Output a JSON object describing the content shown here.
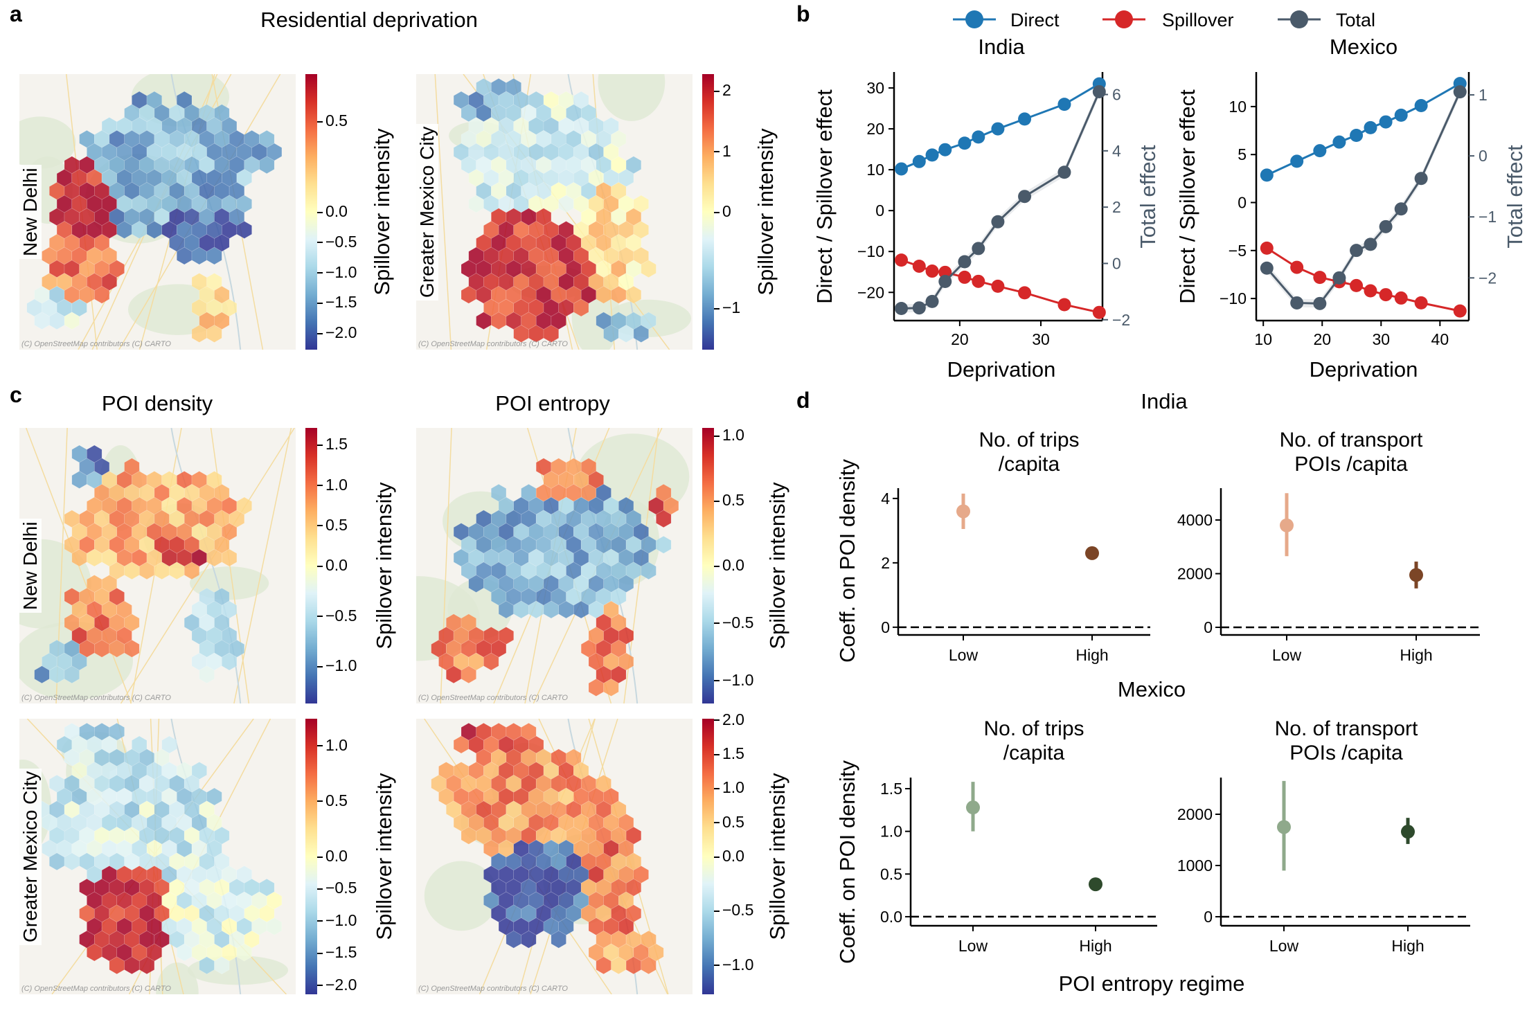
{
  "panel_labels": {
    "a": "a",
    "b": "b",
    "c": "c",
    "d": "d"
  },
  "panel_a": {
    "title": "Residential deprivation",
    "maps": [
      {
        "city": "New Delhi",
        "attribution": "(C) OpenStreetMap contributors (C) CARTO",
        "colorbar_label": "Spillover intensity",
        "vmin": -2.27,
        "vmax": 0.76,
        "ticks": [
          "0.5",
          "0.0",
          "−0.5",
          "−1.0",
          "−1.5",
          "−2.0"
        ],
        "tick_values": [
          0.5,
          0,
          -0.5,
          -1.0,
          -1.5,
          -2.0
        ]
      },
      {
        "city": "Greater Mexico City",
        "attribution": "(C) OpenStreetMap contributors (C) CARTO",
        "colorbar_label": "Spillover intensity",
        "vmin": -1.43,
        "vmax": 2.28,
        "ticks": [
          "2",
          "1",
          "0",
          "−1"
        ],
        "tick_values": [
          2,
          1,
          0,
          -1
        ]
      }
    ]
  },
  "panel_c": {
    "col_titles": [
      "POI density",
      "POI entropy"
    ],
    "maps": [
      {
        "city": "New Delhi",
        "attribution": "(C) OpenStreetMap contributors (C) CARTO",
        "colorbar_label": "Spillover intensity",
        "vmin": -1.37,
        "vmax": 1.71,
        "ticks": [
          "1.5",
          "1.0",
          "0.5",
          "0.0",
          "−0.5",
          "−1.0"
        ],
        "tick_values": [
          1.5,
          1.0,
          0.5,
          0,
          -0.5,
          -1.0
        ]
      },
      {
        "city": "",
        "attribution": "(C) OpenStreetMap contributors (C) CARTO",
        "colorbar_label": "Spillover intensity",
        "vmin": -1.2,
        "vmax": 1.06,
        "ticks": [
          "1.0",
          "0.5",
          "0.0",
          "−0.5",
          "−1.0"
        ],
        "tick_values": [
          1.0,
          0.5,
          0,
          -0.5,
          -1.0
        ]
      },
      {
        "city": "Greater Mexico City",
        "attribution": "(C) OpenStreetMap contributors (C) CARTO",
        "colorbar_label": "Spillover intensity",
        "vmin": -2.14,
        "vmax": 1.24,
        "ticks": [
          "1.0",
          "0.5",
          "0.0",
          "−0.5",
          "−1.0",
          "−1.5",
          "−2.0"
        ],
        "tick_values": [
          1.0,
          0.5,
          0,
          -0.5,
          -1.0,
          -1.5,
          -2.0
        ]
      },
      {
        "city": "",
        "attribution": "(C) OpenStreetMap contributors (C) CARTO",
        "colorbar_label": "Spillover intensity",
        "vmin": -1.27,
        "vmax": 2.02,
        "ticks": [
          "2.0",
          "1.5",
          "1.0",
          "0.5",
          "0.0",
          "−0.5",
          "−1.0"
        ],
        "tick_values": [
          2.0,
          1.5,
          1.0,
          0.5,
          0,
          -0.5,
          -1.0
        ]
      }
    ]
  },
  "colormap": [
    "#313695",
    "#4575b4",
    "#74add1",
    "#abd9e9",
    "#e0f3f8",
    "#ffffbf",
    "#fee090",
    "#fdae61",
    "#f46d43",
    "#d73027",
    "#a50026"
  ],
  "chart_data": [
    {
      "type": "line",
      "panel": "b",
      "legend": {
        "placement": "top",
        "entries": [
          {
            "name": "Direct",
            "color": "#1f77b4"
          },
          {
            "name": "Spillover",
            "color": "#d62728"
          },
          {
            "name": "Total",
            "color": "#4a5a6a"
          }
        ]
      },
      "subplots": [
        {
          "title": "India",
          "xlabel": "Deprivation",
          "ylabel": "Direct / Spillover effect",
          "ylabel_right": "Total effect",
          "xlim": [
            11.9,
            37.6
          ],
          "ylim": [
            -26.9,
            33.9
          ],
          "ylim_right": [
            -2.03,
            6.8
          ],
          "xticks": [
            20,
            30
          ],
          "yticks": [
            -20,
            -10,
            0,
            10,
            20,
            30
          ],
          "yticks_right": [
            -2,
            0,
            2,
            4,
            6
          ],
          "x": [
            12.8,
            15.0,
            16.6,
            18.2,
            20.6,
            22.3,
            24.7,
            28.0,
            32.9,
            37.2
          ],
          "series": [
            {
              "name": "Direct",
              "axis": "left",
              "values": [
                10.2,
                12.0,
                13.6,
                14.9,
                16.5,
                18.0,
                20.0,
                22.4,
                26.0,
                31.0
              ]
            },
            {
              "name": "Spillover",
              "axis": "left",
              "values": [
                -12.1,
                -13.6,
                -14.8,
                -15.1,
                -16.3,
                -17.3,
                -18.5,
                -20.1,
                -23.0,
                -24.9
              ]
            },
            {
              "name": "Total",
              "axis": "right",
              "values": [
                -1.6,
                -1.58,
                -1.35,
                -0.64,
                0.06,
                0.53,
                1.48,
                2.38,
                3.24,
                6.1
              ]
            }
          ]
        },
        {
          "title": "Mexico",
          "xlabel": "Deprivation",
          "ylabel": "Direct / Spillover effect",
          "ylabel_right": "Total effect",
          "xlim": [
            8.8,
            44.9
          ],
          "ylim": [
            -12.3,
            13.6
          ],
          "ylim_right": [
            -2.7,
            1.375
          ],
          "xticks": [
            10,
            20,
            30,
            40
          ],
          "yticks": [
            -10,
            -5,
            0,
            5,
            10
          ],
          "yticks_right": [
            -2,
            -1,
            0,
            1
          ],
          "x": [
            10.6,
            15.7,
            19.6,
            22.9,
            25.8,
            28.2,
            30.8,
            33.4,
            36.8,
            43.4
          ],
          "series": [
            {
              "name": "Direct",
              "axis": "left",
              "values": [
                2.86,
                4.3,
                5.4,
                6.3,
                7.0,
                7.8,
                8.4,
                9.1,
                10.1,
                12.4
              ]
            },
            {
              "name": "Spillover",
              "axis": "left",
              "values": [
                -4.75,
                -6.75,
                -7.8,
                -8.25,
                -8.65,
                -9.2,
                -9.6,
                -9.95,
                -10.45,
                -11.3
              ]
            },
            {
              "name": "Total",
              "axis": "right",
              "values": [
                -1.84,
                -2.41,
                -2.42,
                -2.0,
                -1.55,
                -1.45,
                -1.16,
                -0.87,
                -0.37,
                1.05
              ]
            }
          ]
        }
      ]
    },
    {
      "type": "scatter",
      "panel": "d",
      "xlabel": "POI entropy regime",
      "ylabel": "Coeff. on POI density",
      "groups": [
        {
          "title": "India",
          "colors": {
            "Low": "#e6a98a",
            "High": "#7b4526"
          },
          "subplots": [
            {
              "title": [
                "No. of trips",
                "/capita"
              ],
              "categories": [
                "Low",
                "High"
              ],
              "ylim": [
                -0.24,
                4.32
              ],
              "yticks": [
                "0",
                "2",
                "4"
              ],
              "ytick_values": [
                0,
                2,
                4
              ],
              "values": [
                3.6,
                2.3
              ],
              "ci": [
                [
                  3.05,
                  4.15
                ],
                [
                  2.2,
                  2.4
                ]
              ]
            },
            {
              "title": [
                "No. of transport",
                "POIs /capita"
              ],
              "categories": [
                "Low",
                "High"
              ],
              "ylim": [
                -284,
                5187
              ],
              "yticks": [
                "0",
                "2000",
                "4000"
              ],
              "ytick_values": [
                0,
                2000,
                4000
              ],
              "values": [
                3800,
                1950
              ],
              "ci": [
                [
                  2650,
                  5000
                ],
                [
                  1450,
                  2450
                ]
              ]
            }
          ]
        },
        {
          "title": "Mexico",
          "colors": {
            "Low": "#8fa98b",
            "High": "#2e4a2c"
          },
          "subplots": [
            {
              "title": [
                "No. of trips",
                "/capita"
              ],
              "categories": [
                "Low",
                "High"
              ],
              "ylim": [
                -0.106,
                1.63
              ],
              "yticks": [
                "0.0",
                "0.5",
                "1.0",
                "1.5"
              ],
              "ytick_values": [
                0,
                0.5,
                1.0,
                1.5
              ],
              "values": [
                1.28,
                0.38
              ],
              "ci": [
                [
                  1.0,
                  1.58
                ],
                [
                  0.33,
                  0.43
                ]
              ]
            },
            {
              "title": [
                "No. of transport",
                "POIs /capita"
              ],
              "categories": [
                "Low",
                "High"
              ],
              "ylim": [
                -176,
                2716
              ],
              "yticks": [
                "0",
                "1000",
                "2000"
              ],
              "ytick_values": [
                0,
                1000,
                2000
              ],
              "values": [
                1750,
                1660
              ],
              "ci": [
                [
                  900,
                  2650
                ],
                [
                  1420,
                  1930
                ]
              ]
            }
          ]
        }
      ]
    }
  ]
}
